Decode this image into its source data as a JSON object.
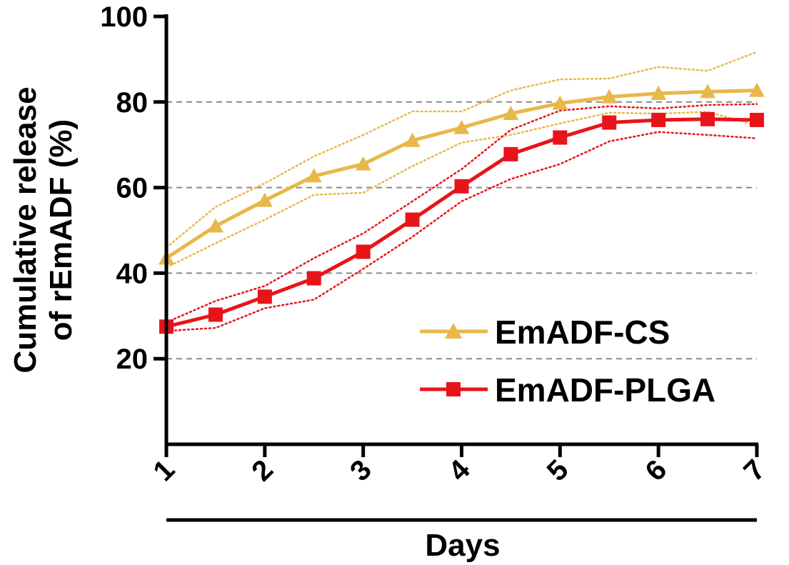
{
  "chart_data": {
    "type": "line",
    "title": "",
    "xlabel": "Days",
    "ylabel_line1": "Cumulative release",
    "ylabel_line2": "of rEmADF (%)",
    "x": [
      1,
      1.5,
      2,
      2.5,
      3,
      3.5,
      4,
      4.5,
      5,
      5.5,
      6,
      6.5,
      7
    ],
    "xticks": [
      1,
      2,
      3,
      4,
      5,
      6,
      7
    ],
    "xtick_labels": [
      "1",
      "2",
      "3",
      "4",
      "5",
      "6",
      "7"
    ],
    "xlim": [
      1,
      7
    ],
    "ylim": [
      0,
      100
    ],
    "yticks": [
      20,
      40,
      60,
      80,
      100
    ],
    "ytick_labels": [
      "20",
      "40",
      "60",
      "80",
      "100"
    ],
    "grid_y": [
      20,
      40,
      60,
      80
    ],
    "legend_position": "lower-right",
    "series": [
      {
        "name": "EmADF-CS",
        "color": "#e8b84a",
        "marker": "triangle",
        "values": [
          43.5,
          51,
          57,
          62.7,
          65.5,
          71,
          74,
          77.3,
          79.7,
          81.2,
          82,
          82.4,
          82.7
        ],
        "upper": [
          46,
          55.5,
          61,
          67.3,
          72.3,
          77.8,
          77.8,
          82.7,
          85.3,
          85.5,
          88.2,
          87.3,
          91.7
        ],
        "lower": [
          41.3,
          47,
          52.5,
          58.3,
          58.8,
          65,
          70.5,
          72.3,
          75,
          77.5,
          77.3,
          77.7,
          74.5
        ]
      },
      {
        "name": "EmADF-PLGA",
        "color": "#e8141a",
        "marker": "square",
        "values": [
          27.5,
          30.3,
          34.5,
          38.8,
          45,
          52.5,
          60.3,
          67.8,
          71.7,
          75.2,
          75.8,
          76,
          75.8
        ],
        "upper": [
          28.5,
          33.5,
          37,
          43.5,
          49.3,
          56.8,
          64.3,
          73.5,
          78,
          79,
          78.5,
          79.3,
          79.5
        ],
        "lower": [
          26.5,
          27.2,
          31.8,
          33.8,
          41,
          48.5,
          56.8,
          62,
          65.5,
          70.8,
          73,
          72.3,
          71.5
        ]
      }
    ]
  }
}
